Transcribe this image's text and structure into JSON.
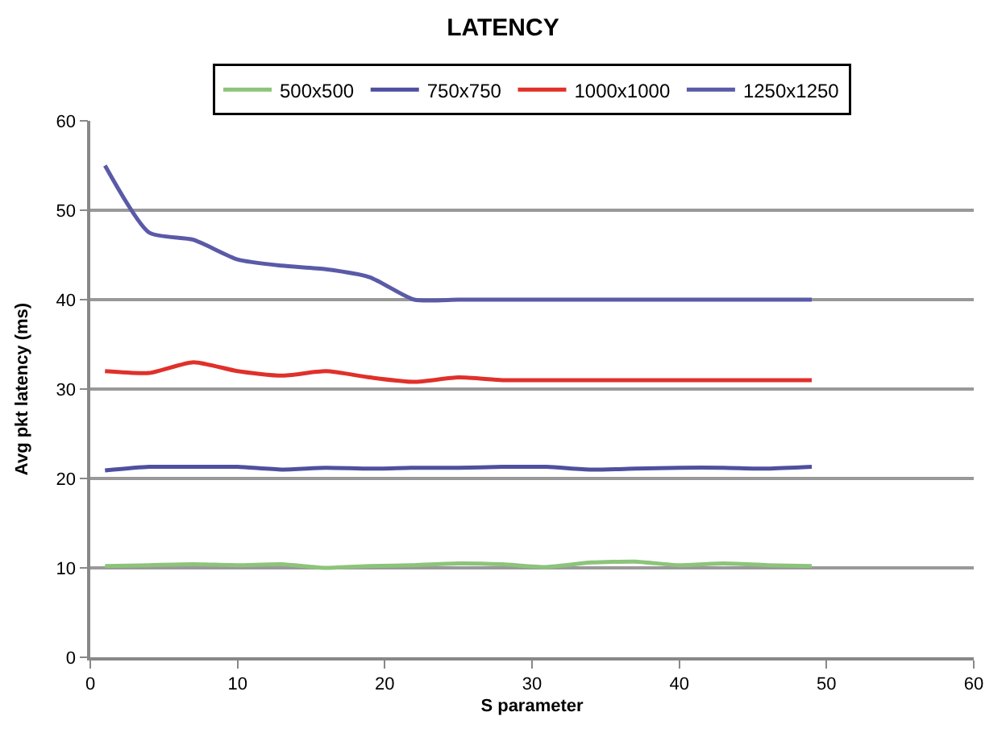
{
  "chart_data": {
    "type": "line",
    "title": "LATENCY",
    "xlabel": "S parameter",
    "ylabel": "Avg pkt latency (ms)",
    "x": [
      1,
      4,
      7,
      10,
      13,
      16,
      19,
      22,
      25,
      28,
      31,
      34,
      37,
      40,
      43,
      46,
      49
    ],
    "series": [
      {
        "name": "500x500",
        "color": "#8cc47a",
        "values": [
          10.2,
          10.3,
          10.4,
          10.3,
          10.4,
          10.0,
          10.2,
          10.3,
          10.5,
          10.4,
          10.1,
          10.6,
          10.7,
          10.3,
          10.5,
          10.3,
          10.2
        ]
      },
      {
        "name": "750x750",
        "color": "#4f4fa0",
        "values": [
          20.9,
          21.3,
          21.3,
          21.3,
          21.0,
          21.2,
          21.1,
          21.2,
          21.2,
          21.3,
          21.3,
          21.0,
          21.1,
          21.2,
          21.2,
          21.1,
          21.3
        ]
      },
      {
        "name": "1000x1000",
        "color": "#e0302a",
        "values": [
          32.0,
          31.8,
          33.0,
          32.0,
          31.5,
          32.0,
          31.3,
          30.8,
          31.3,
          31.0,
          31.0,
          31.0,
          31.0,
          31.0,
          31.0,
          31.0,
          31.0
        ]
      },
      {
        "name": "1250x1250",
        "color": "#5a5aa8",
        "values": [
          55.0,
          47.5,
          46.7,
          44.5,
          43.8,
          43.4,
          42.5,
          40.0,
          40.0,
          40.0,
          40.0,
          40.0,
          40.0,
          40.0,
          40.0,
          40.0,
          40.0
        ]
      }
    ],
    "xlim": [
      0,
      60
    ],
    "xticks": [
      0,
      10,
      20,
      30,
      40,
      50,
      60
    ],
    "ylim": [
      0,
      60
    ],
    "yticks": [
      0,
      10,
      20,
      30,
      40,
      50,
      60
    ],
    "grid": "y",
    "legend": "top",
    "marker": "none",
    "line_style": "solid"
  }
}
